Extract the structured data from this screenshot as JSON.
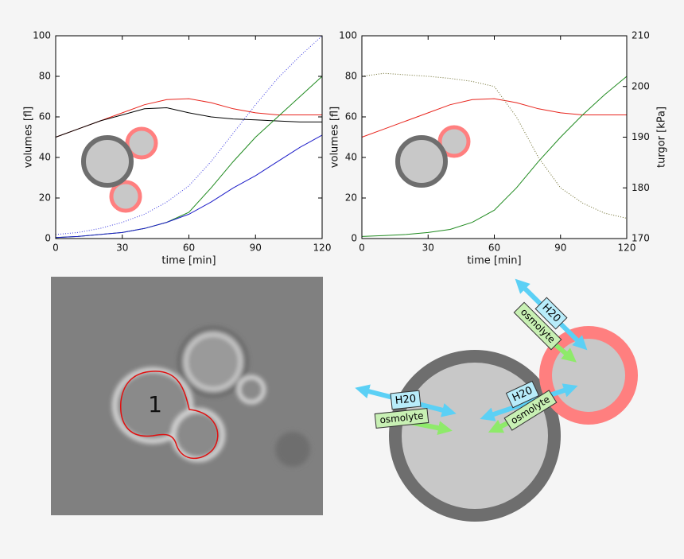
{
  "chart_data": [
    {
      "type": "line",
      "xlabel": "time [min]",
      "ylabel": "volumes [fl]",
      "x": [
        0,
        10,
        20,
        30,
        40,
        50,
        60,
        70,
        80,
        90,
        100,
        110,
        120
      ],
      "xlim": [
        0,
        120
      ],
      "xticks": [
        0,
        30,
        60,
        90,
        120
      ],
      "ylim": [
        0,
        100
      ],
      "yticks": [
        0,
        20,
        40,
        60,
        80,
        100
      ],
      "series": [
        {
          "color": "#e8241c",
          "linestyle": "solid",
          "values": [
            50,
            54,
            58,
            62,
            66,
            68.5,
            69,
            67,
            64,
            62,
            61,
            61,
            61
          ]
        },
        {
          "color": "#000000",
          "linestyle": "solid",
          "values": [
            50,
            54,
            58,
            61,
            64,
            64.5,
            62,
            60,
            59,
            58.5,
            58,
            57.5,
            57.5
          ]
        },
        {
          "color": "#3a3ae0",
          "linestyle": "dotted",
          "values": [
            2,
            3,
            5,
            8,
            12,
            18,
            26,
            38,
            52,
            66,
            79,
            90,
            100
          ]
        },
        {
          "color": "#1f8a1f",
          "linestyle": "solid",
          "values": [
            0.5,
            1,
            2,
            3,
            5,
            8,
            13,
            25,
            38,
            50,
            60,
            70,
            80
          ]
        },
        {
          "color": "#1c1cc8",
          "linestyle": "solid",
          "values": [
            0.5,
            1,
            2,
            3,
            5,
            8,
            12,
            18,
            25,
            31,
            38,
            45,
            51
          ]
        }
      ]
    },
    {
      "type": "line",
      "xlabel": "time [min]",
      "ylabel": "volumes [fl]",
      "y2label": "turgor [kPa]",
      "x": [
        0,
        10,
        20,
        30,
        40,
        50,
        60,
        70,
        80,
        90,
        100,
        110,
        120
      ],
      "xlim": [
        0,
        120
      ],
      "xticks": [
        0,
        30,
        60,
        90,
        120
      ],
      "ylim": [
        0,
        100
      ],
      "yticks": [
        0,
        20,
        40,
        60,
        80,
        100
      ],
      "y2lim": [
        170,
        210
      ],
      "y2ticks": [
        170,
        180,
        190,
        200,
        210
      ],
      "series": [
        {
          "color": "#e8241c",
          "linestyle": "solid",
          "values": [
            50,
            54,
            58,
            62,
            66,
            68.5,
            69,
            67,
            64,
            62,
            61,
            61,
            61
          ]
        },
        {
          "color": "#1f8a1f",
          "linestyle": "solid",
          "values": [
            1,
            1.5,
            2,
            3,
            4.5,
            8,
            14,
            25,
            38,
            50,
            61,
            71,
            80
          ]
        },
        {
          "color": "#6b6b2a",
          "linestyle": "dotted",
          "axis": "y2",
          "values": [
            202,
            202.6,
            202.3,
            202,
            201.6,
            201,
            200,
            194,
            186,
            180,
            177,
            175,
            174
          ]
        }
      ]
    }
  ],
  "micrograph": {
    "label": "1"
  },
  "diagram": {
    "labels": [
      {
        "water": "H20",
        "solute": "osmolyte"
      },
      {
        "water": "H20",
        "solute": "osmolyte"
      },
      {
        "water": "H20",
        "solute": "osmolyte"
      }
    ]
  }
}
